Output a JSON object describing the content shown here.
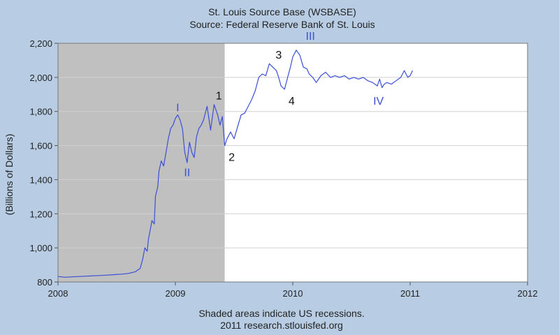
{
  "chart_data": {
    "type": "line",
    "title": "St. Louis Source Base (WSBASE)",
    "subtitle": "Source: Federal Reserve Bank of St. Louis",
    "ylabel": "(Billions of Dollars)",
    "xlabel": "",
    "xlim": [
      2008,
      2012
    ],
    "ylim": [
      800,
      2200
    ],
    "x_ticks": [
      2008,
      2009,
      2010,
      2011,
      2012
    ],
    "x_tick_labels": [
      "2008",
      "2009",
      "2010",
      "2011",
      "2012"
    ],
    "y_ticks": [
      800,
      1000,
      1200,
      1400,
      1600,
      1800,
      2000,
      2200
    ],
    "y_tick_labels": [
      "800",
      "1,000",
      "1,200",
      "1,400",
      "1,600",
      "1,800",
      "2,000",
      "2,200"
    ],
    "grid": true,
    "recession": {
      "start": 2008.0,
      "end": 2009.42,
      "color": "#c0c0c0"
    },
    "series": [
      {
        "color": "#3b4fd6",
        "x": [
          2008.0,
          2008.06,
          2008.12,
          2008.18,
          2008.24,
          2008.3,
          2008.36,
          2008.42,
          2008.48,
          2008.54,
          2008.6,
          2008.66,
          2008.7,
          2008.72,
          2008.74,
          2008.76,
          2008.77,
          2008.79,
          2008.8,
          2008.82,
          2008.83,
          2008.85,
          2008.86,
          2008.88,
          2008.9,
          2008.92,
          2008.94,
          2008.96,
          2008.98,
          2009.0,
          2009.02,
          2009.04,
          2009.06,
          2009.08,
          2009.1,
          2009.12,
          2009.14,
          2009.16,
          2009.18,
          2009.2,
          2009.22,
          2009.24,
          2009.27,
          2009.3,
          2009.33,
          2009.36,
          2009.38,
          2009.4,
          2009.42,
          2009.44,
          2009.47,
          2009.5,
          2009.53,
          2009.56,
          2009.59,
          2009.62,
          2009.65,
          2009.68,
          2009.71,
          2009.74,
          2009.77,
          2009.8,
          2009.83,
          2009.86,
          2009.88,
          2009.9,
          2009.93,
          2009.96,
          2009.98,
          2010.0,
          2010.03,
          2010.06,
          2010.09,
          2010.12,
          2010.14,
          2010.17,
          2010.2,
          2010.24,
          2010.28,
          2010.32,
          2010.36,
          2010.4,
          2010.44,
          2010.48,
          2010.52,
          2010.56,
          2010.6,
          2010.64,
          2010.68,
          2010.72,
          2010.74,
          2010.76,
          2010.78,
          2010.8,
          2010.84,
          2010.88,
          2010.92,
          2010.95,
          2010.98,
          2011.0,
          2011.02
        ],
        "y": [
          832,
          828,
          830,
          832,
          834,
          836,
          838,
          840,
          843,
          846,
          850,
          860,
          880,
          930,
          1000,
          980,
          1050,
          1120,
          1160,
          1140,
          1300,
          1360,
          1450,
          1510,
          1480,
          1560,
          1640,
          1700,
          1720,
          1760,
          1780,
          1750,
          1700,
          1560,
          1500,
          1620,
          1560,
          1530,
          1650,
          1700,
          1720,
          1750,
          1830,
          1690,
          1840,
          1780,
          1720,
          1770,
          1600,
          1640,
          1680,
          1640,
          1710,
          1780,
          1790,
          1830,
          1870,
          1920,
          2000,
          2020,
          2010,
          2080,
          2060,
          2040,
          2000,
          1950,
          1930,
          2010,
          2060,
          2120,
          2160,
          2130,
          2060,
          2050,
          2020,
          2000,
          1970,
          2010,
          2030,
          2000,
          2010,
          2000,
          2010,
          1990,
          2000,
          1990,
          2000,
          1980,
          1970,
          1950,
          1990,
          1940,
          1960,
          1970,
          1960,
          1980,
          2000,
          2040,
          2000,
          2010,
          2040
        ]
      }
    ],
    "annotations": [
      {
        "text": "1",
        "x": 2009.37,
        "y": 1870,
        "color": "#111111"
      },
      {
        "text": "2",
        "x": 2009.48,
        "y": 1510,
        "color": "#111111"
      },
      {
        "text": "3",
        "x": 2009.88,
        "y": 2110,
        "color": "#111111"
      },
      {
        "text": "4",
        "x": 2009.99,
        "y": 1840,
        "color": "#111111"
      },
      {
        "text": "I",
        "x": 2009.02,
        "y": 1800,
        "color": "#3b4fd6"
      },
      {
        "text": "II",
        "x": 2009.1,
        "y": 1420,
        "color": "#3b4fd6"
      },
      {
        "text": "III",
        "x": 2010.15,
        "y": 2220,
        "color": "#3b4fd6"
      },
      {
        "text": "IV",
        "x": 2010.73,
        "y": 1840,
        "color": "#3b4fd6"
      }
    ],
    "footer": [
      "Shaded areas indicate US recessions.",
      "2011 research.stlouisfed.org"
    ]
  }
}
